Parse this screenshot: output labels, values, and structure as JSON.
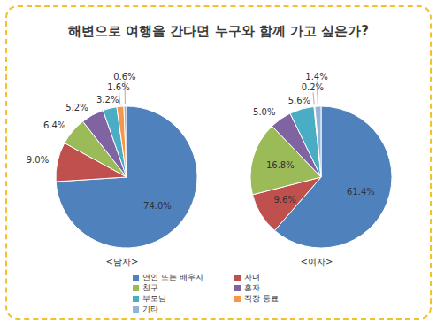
{
  "title": "해변으로 여행을 간다면 누구와 함께 가고 싶은가?",
  "legend": "bottom",
  "chart_data": [
    {
      "type": "pie",
      "title": "<남자>",
      "categories": [
        "연인 또는 배우자",
        "자녀",
        "친구",
        "혼자",
        "부모님",
        "직장 동료",
        "기타"
      ],
      "values": [
        74.0,
        9.0,
        6.4,
        5.2,
        3.2,
        1.6,
        0.6
      ],
      "value_labels": [
        "74.0%",
        "9.0%",
        "6.4%",
        "5.2%",
        "3.2%",
        "1.6%",
        "0.6%"
      ],
      "colors": [
        "#4f81bd",
        "#c0504d",
        "#9bbb59",
        "#8064a2",
        "#4bacc6",
        "#f79646",
        "#95b3d7"
      ],
      "data_labels": true
    },
    {
      "type": "pie",
      "title": "<여자>",
      "categories": [
        "연인 또는 배우자",
        "자녀",
        "친구",
        "혼자",
        "부모님",
        "직장 동료",
        "기타"
      ],
      "values": [
        61.4,
        9.6,
        16.8,
        5.0,
        5.6,
        0.2,
        1.4
      ],
      "value_labels": [
        "61.4%",
        "9.6%",
        "16.8%",
        "5.0%",
        "5.6%",
        "0.2%",
        "1.4%"
      ],
      "colors": [
        "#4f81bd",
        "#c0504d",
        "#9bbb59",
        "#8064a2",
        "#4bacc6",
        "#f79646",
        "#95b3d7"
      ],
      "data_labels": true
    }
  ]
}
